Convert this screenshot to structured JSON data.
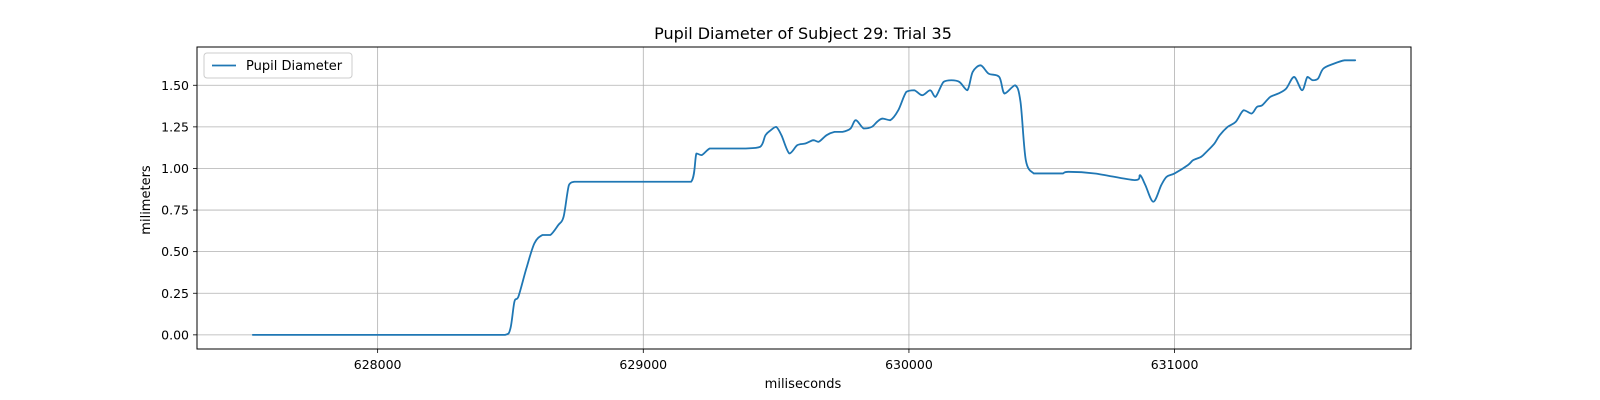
{
  "chart_data": {
    "type": "line",
    "title": "Pupil Diameter of Subject 29: Trial 35",
    "xlabel": "miliseconds",
    "ylabel": "milimeters",
    "xlim": [
      627320,
      631890
    ],
    "ylim": [
      -0.085,
      1.73
    ],
    "xticks": [
      628000,
      629000,
      630000,
      631000
    ],
    "xtick_labels": [
      "628000",
      "629000",
      "630000",
      "631000"
    ],
    "yticks": [
      0.0,
      0.25,
      0.5,
      0.75,
      1.0,
      1.25,
      1.5
    ],
    "ytick_labels": [
      "0.00",
      "0.25",
      "0.50",
      "0.75",
      "1.00",
      "1.25",
      "1.50"
    ],
    "grid": true,
    "legend_position": "upper-left",
    "line_color": "#1f77b4",
    "series": [
      {
        "name": "Pupil Diameter",
        "x": [
          627530,
          627800,
          628000,
          628200,
          628400,
          628480,
          628500,
          628515,
          628530,
          628560,
          628590,
          628620,
          628650,
          628680,
          628700,
          628720,
          628740,
          628760,
          628770,
          628790,
          628800,
          628900,
          629000,
          629100,
          629180,
          629200,
          629220,
          629250,
          629280,
          629320,
          629380,
          629440,
          629460,
          629480,
          629500,
          629520,
          629550,
          629580,
          629610,
          629640,
          629660,
          629690,
          629720,
          629750,
          629780,
          629800,
          629830,
          629860,
          629880,
          629900,
          629930,
          629960,
          629990,
          630020,
          630050,
          630080,
          630100,
          630130,
          630160,
          630190,
          630220,
          630240,
          630270,
          630300,
          630340,
          630360,
          630400,
          630420,
          630440,
          630470,
          630490,
          630510,
          630530,
          630540,
          630550,
          630560,
          630570,
          630580,
          630600,
          630700,
          630850,
          630870,
          630890,
          630920,
          630950,
          630970,
          631000,
          631050,
          631070,
          631100,
          631120,
          631150,
          631170,
          631200,
          631230,
          631260,
          631290,
          631310,
          631330,
          631360,
          631390,
          631420,
          631450,
          631480,
          631500,
          631520,
          631540,
          631560,
          631600,
          631640,
          631680
        ],
        "y": [
          0.0,
          0.0,
          0.0,
          0.0,
          0.0,
          0.0,
          0.04,
          0.2,
          0.23,
          0.4,
          0.55,
          0.6,
          0.6,
          0.66,
          0.71,
          0.9,
          0.92,
          0.92,
          0.92,
          0.92,
          0.92,
          0.92,
          0.92,
          0.92,
          0.92,
          1.09,
          1.08,
          1.12,
          1.12,
          1.12,
          1.12,
          1.13,
          1.2,
          1.23,
          1.25,
          1.2,
          1.09,
          1.14,
          1.15,
          1.17,
          1.16,
          1.2,
          1.22,
          1.22,
          1.24,
          1.29,
          1.24,
          1.25,
          1.28,
          1.3,
          1.29,
          1.35,
          1.46,
          1.47,
          1.44,
          1.47,
          1.43,
          1.52,
          1.53,
          1.52,
          1.47,
          1.58,
          1.62,
          1.57,
          1.55,
          1.45,
          1.5,
          1.4,
          1.05,
          0.97,
          0.97,
          0.97,
          0.97,
          0.97,
          0.97,
          0.97,
          0.97,
          0.97,
          0.98,
          0.97,
          0.93,
          0.96,
          0.9,
          0.8,
          0.9,
          0.95,
          0.97,
          1.02,
          1.05,
          1.07,
          1.1,
          1.15,
          1.2,
          1.25,
          1.28,
          1.35,
          1.33,
          1.37,
          1.38,
          1.43,
          1.45,
          1.48,
          1.55,
          1.47,
          1.55,
          1.53,
          1.54,
          1.6,
          1.63,
          1.65,
          1.65
        ]
      }
    ]
  }
}
